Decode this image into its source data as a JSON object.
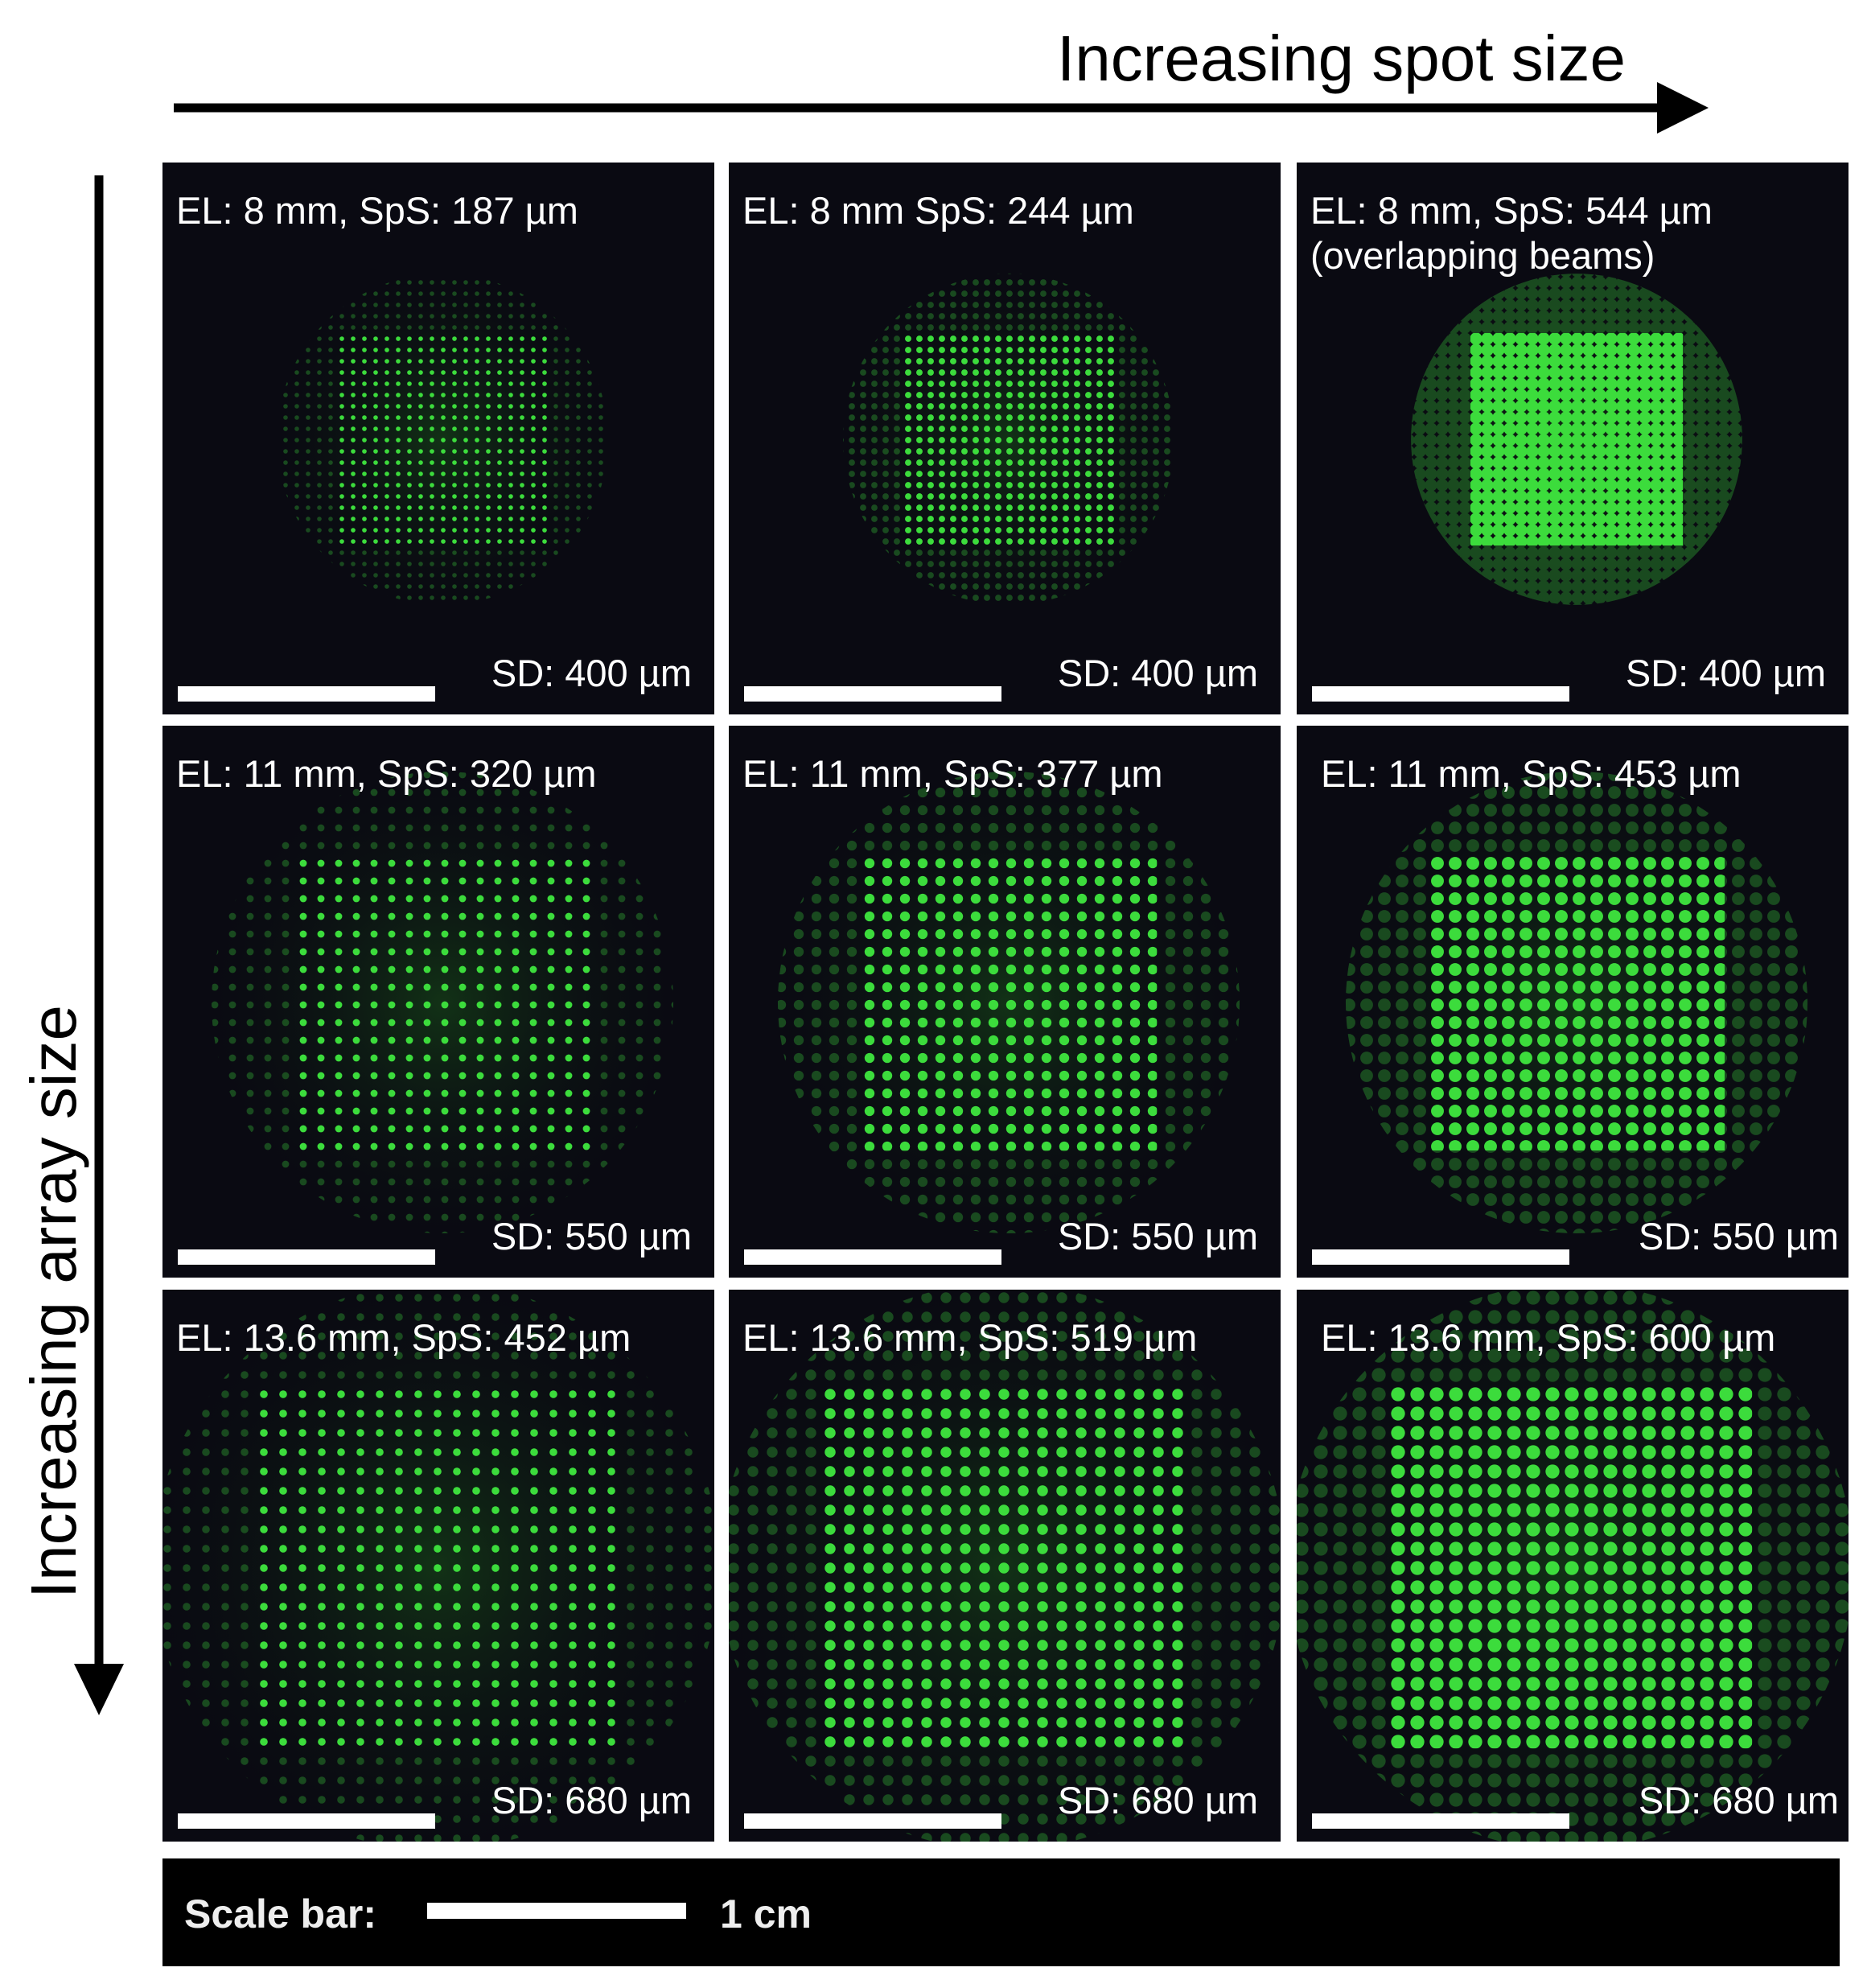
{
  "header": {
    "x_axis_label": "Increasing spot size",
    "y_axis_label": "Increasing array size"
  },
  "panels": [
    {
      "label": "EL: 8 mm, SpS: 187 µm",
      "sd": "SD: 400 µm"
    },
    {
      "label": "EL: 8 mm SpS: 244 µm",
      "sd": "SD: 400 µm"
    },
    {
      "label": "EL: 8 mm, SpS: 544 µm",
      "note": "(overlapping beams)",
      "sd": "SD: 400 µm"
    },
    {
      "label": "EL: 11 mm, SpS: 320 µm",
      "sd": "SD: 550 µm"
    },
    {
      "label": "EL: 11 mm, SpS: 377 µm",
      "sd": "SD: 550 µm"
    },
    {
      "label": "EL: 11 mm, SpS: 453 µm",
      "sd": "SD: 550 µm"
    },
    {
      "label": "EL: 13.6 mm, SpS: 452 µm",
      "sd": "SD: 680 µm"
    },
    {
      "label": "EL: 13.6 mm, SpS: 519 µm",
      "sd": "SD: 680 µm"
    },
    {
      "label": "EL: 13.6 mm, SpS: 600 µm",
      "sd": "SD: 680 µm"
    }
  ],
  "scale_bar": {
    "label": "Scale bar:",
    "length": "1 cm"
  }
}
